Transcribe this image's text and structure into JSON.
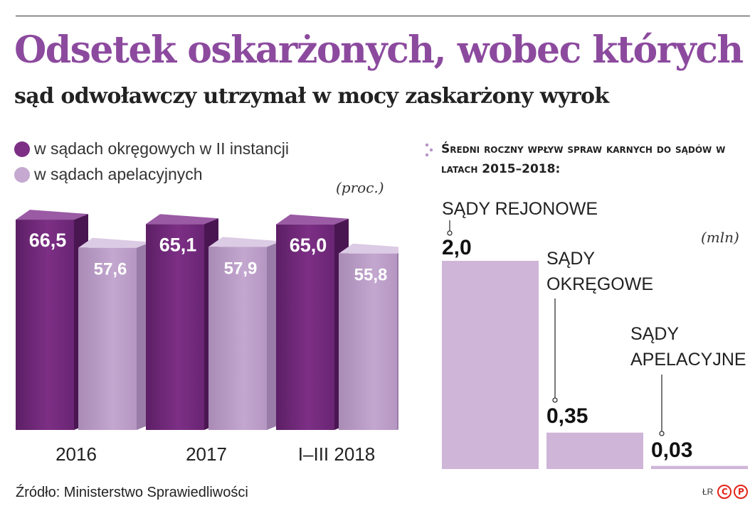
{
  "header": {
    "title": "Odsetek oskarżonych, wobec których",
    "subtitle": "sąd odwoławczy utrzymał  w mocy zaskarżony wyrok"
  },
  "legend": [
    {
      "label": "w sądach okręgowych w II instancji",
      "color": "#7c2f85"
    },
    {
      "label": "w sądach apelacyjnych",
      "color": "#c5a9d0"
    }
  ],
  "left_unit": "(proc.)",
  "right_title": "Średni roczny wpływ spraw karnych do sądów w latach 2015–2018:",
  "right_unit": "(mln)",
  "source": "Źródło: Ministerstwo Sprawiedliwości",
  "credit": {
    "author": "ŁR",
    "logo_letters": [
      "C",
      "P"
    ]
  },
  "colors": {
    "title": "#8c4a9e",
    "dark_purple": "#7c2f85",
    "light_purple": "#c5a9d0",
    "flat_purple": "#cfb5d8",
    "logo_red": "#e2231a"
  },
  "chart_data": [
    {
      "type": "bar",
      "categories": [
        "2016",
        "2017",
        "I–III 2018"
      ],
      "series": [
        {
          "name": "w sądach okręgowych w II instancji",
          "values": [
            66.5,
            65.1,
            65.0
          ]
        },
        {
          "name": "w sądach apelacyjnych",
          "values": [
            57.6,
            57.9,
            55.8
          ]
        }
      ],
      "value_labels": [
        [
          "66,5",
          "65,1",
          "65,0"
        ],
        [
          "57,6",
          "57,9",
          "55,8"
        ]
      ],
      "unit": "(proc.)"
    },
    {
      "type": "bar",
      "title": "Średni roczny wpływ spraw karnych do sądów w latach 2015–2018:",
      "categories": [
        "SĄDY REJONOWE",
        "SĄDY OKRĘGOWE",
        "SĄDY APELACYJNE"
      ],
      "values": [
        2.0,
        0.35,
        0.03
      ],
      "value_labels": [
        "2,0",
        "0,35",
        "0,03"
      ],
      "unit": "(mln)"
    }
  ]
}
